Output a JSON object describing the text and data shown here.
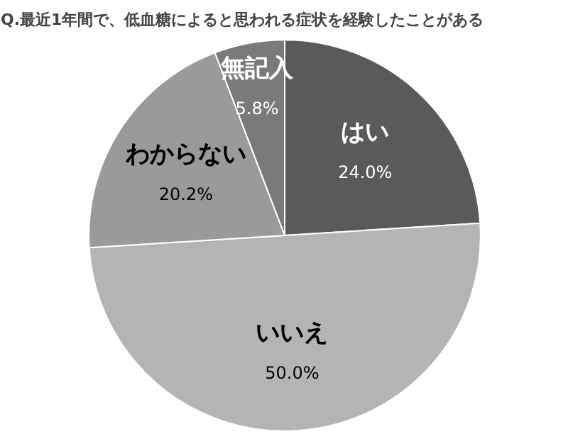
{
  "chart_data": {
    "type": "pie",
    "title": "Q.最近1年間で、低血糖によると思われる症状を経験したことがある",
    "categories": [
      "はい",
      "いいえ",
      "わからない",
      "無記入"
    ],
    "values": [
      24.0,
      50.0,
      20.2,
      5.8
    ],
    "colors": [
      "#5a5a5a",
      "#b4b4b4",
      "#9a9a9a",
      "#7a7a7a"
    ],
    "value_labels": [
      "24.0%",
      "50.0%",
      "20.2%",
      "5.8%"
    ]
  }
}
